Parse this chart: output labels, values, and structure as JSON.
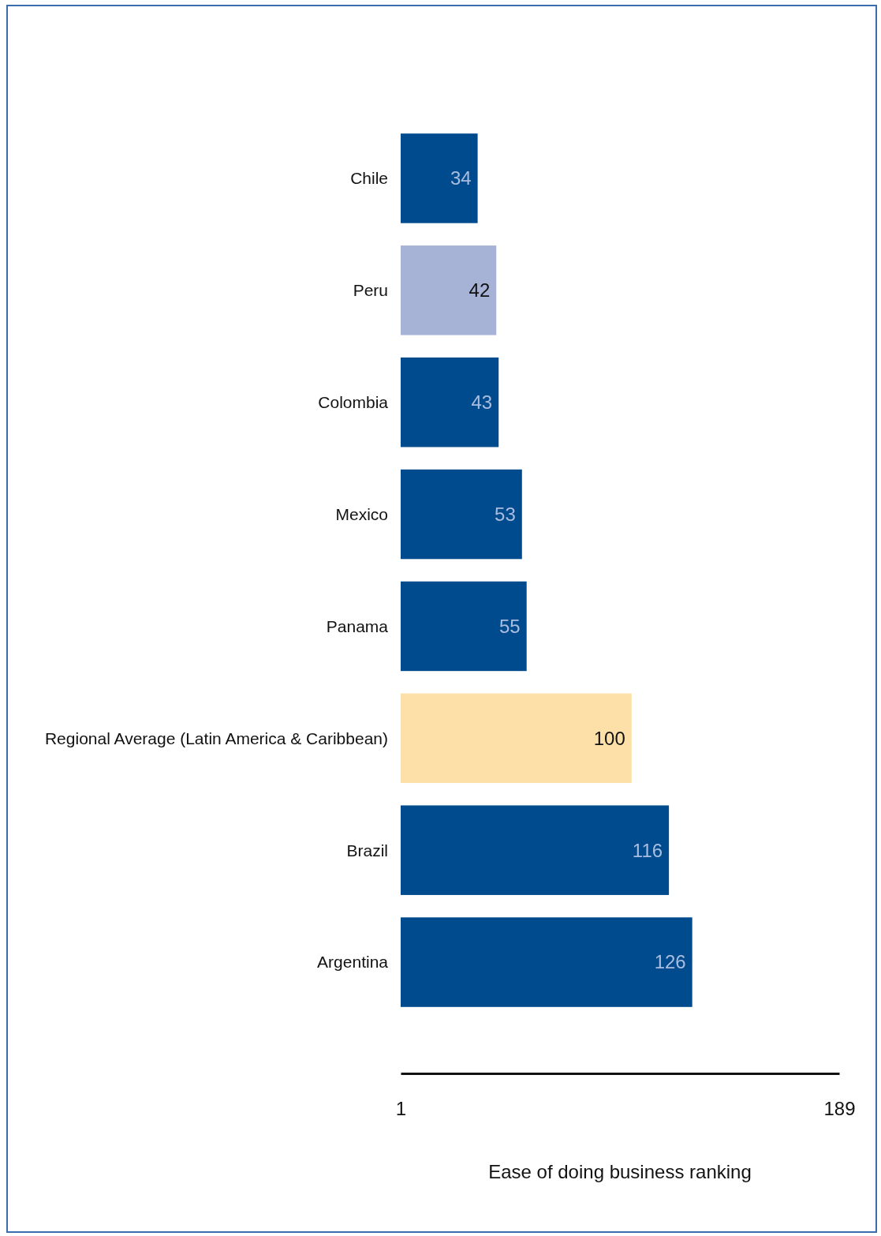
{
  "chart_data": {
    "type": "bar",
    "orientation": "horizontal",
    "xlabel": "Ease of doing business ranking",
    "categories": [
      "Chile",
      "Peru",
      "Colombia",
      "Mexico",
      "Panama",
      "Regional Average (Latin America & Caribbean)",
      "Brazil",
      "Argentina"
    ],
    "values": [
      34,
      42,
      43,
      53,
      55,
      100,
      116,
      126
    ],
    "colors": [
      "#004b8d",
      "#a6b2d6",
      "#004b8d",
      "#004b8d",
      "#004b8d",
      "#fde0a8",
      "#004b8d",
      "#004b8d"
    ],
    "xlim": [
      1,
      189
    ],
    "xticks": [
      1,
      189
    ],
    "data_labels": true
  }
}
